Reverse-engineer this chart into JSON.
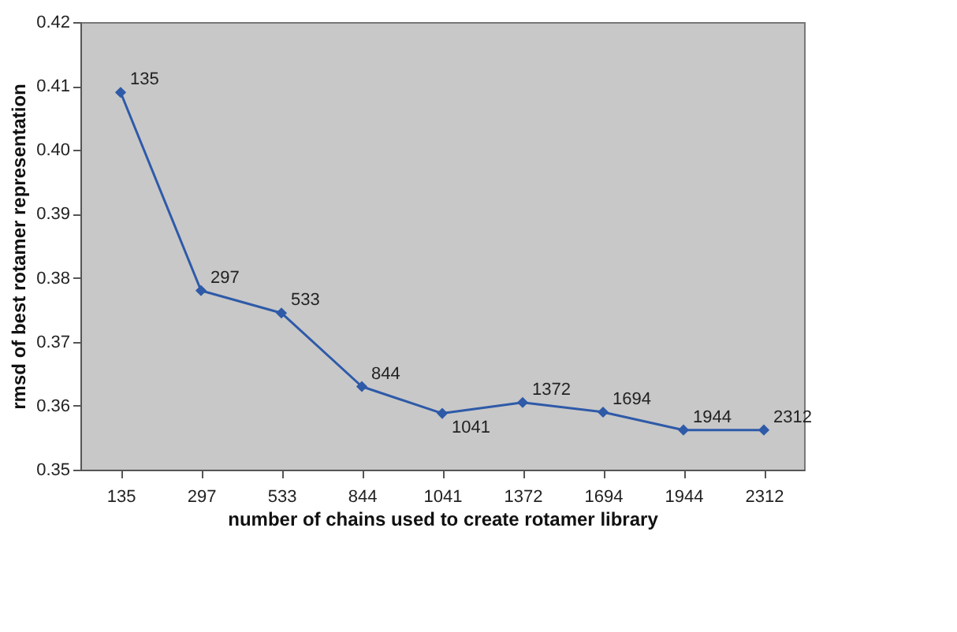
{
  "chart_data": {
    "type": "line",
    "xlabel": "number of chains used to create  rotamer library",
    "ylabel": "rmsd of best rotamer representation",
    "categories": [
      "135",
      "297",
      "533",
      "844",
      "1041",
      "1372",
      "1694",
      "1944",
      "2312"
    ],
    "series": [
      {
        "color": "#2e5aa8",
        "values": [
          0.409,
          0.378,
          0.3745,
          0.363,
          0.3588,
          0.3605,
          0.359,
          0.3562,
          0.3562
        ]
      }
    ],
    "ylim": [
      0.35,
      0.42
    ],
    "yticks": [
      {
        "value": 0.35,
        "label": "0.35"
      },
      {
        "value": 0.36,
        "label": "0.36"
      },
      {
        "value": 0.37,
        "label": "0.37"
      },
      {
        "value": 0.38,
        "label": "0.38"
      },
      {
        "value": 0.39,
        "label": "0.39"
      },
      {
        "value": 0.4,
        "label": "0.40"
      },
      {
        "value": 0.41,
        "label": "0.41"
      },
      {
        "value": 0.42,
        "label": "0.42"
      }
    ],
    "annotations": [
      {
        "text": "135",
        "x": "135",
        "y": 0.409
      },
      {
        "text": "297",
        "x": "297",
        "y": 0.378
      },
      {
        "text": "533",
        "x": "533",
        "y": 0.3745
      },
      {
        "text": "844",
        "x": "844",
        "y": 0.363
      },
      {
        "text": "1041",
        "x": "1041",
        "y": 0.3588
      },
      {
        "text": "1372",
        "x": "1372",
        "y": 0.3605
      },
      {
        "text": "1694",
        "x": "1694",
        "y": 0.359
      },
      {
        "text": "1944",
        "x": "1944",
        "y": 0.3562
      },
      {
        "text": "2312",
        "x": "2312",
        "y": 0.3562
      }
    ],
    "grid": false,
    "marker": "diamond",
    "line_style": "solid"
  }
}
